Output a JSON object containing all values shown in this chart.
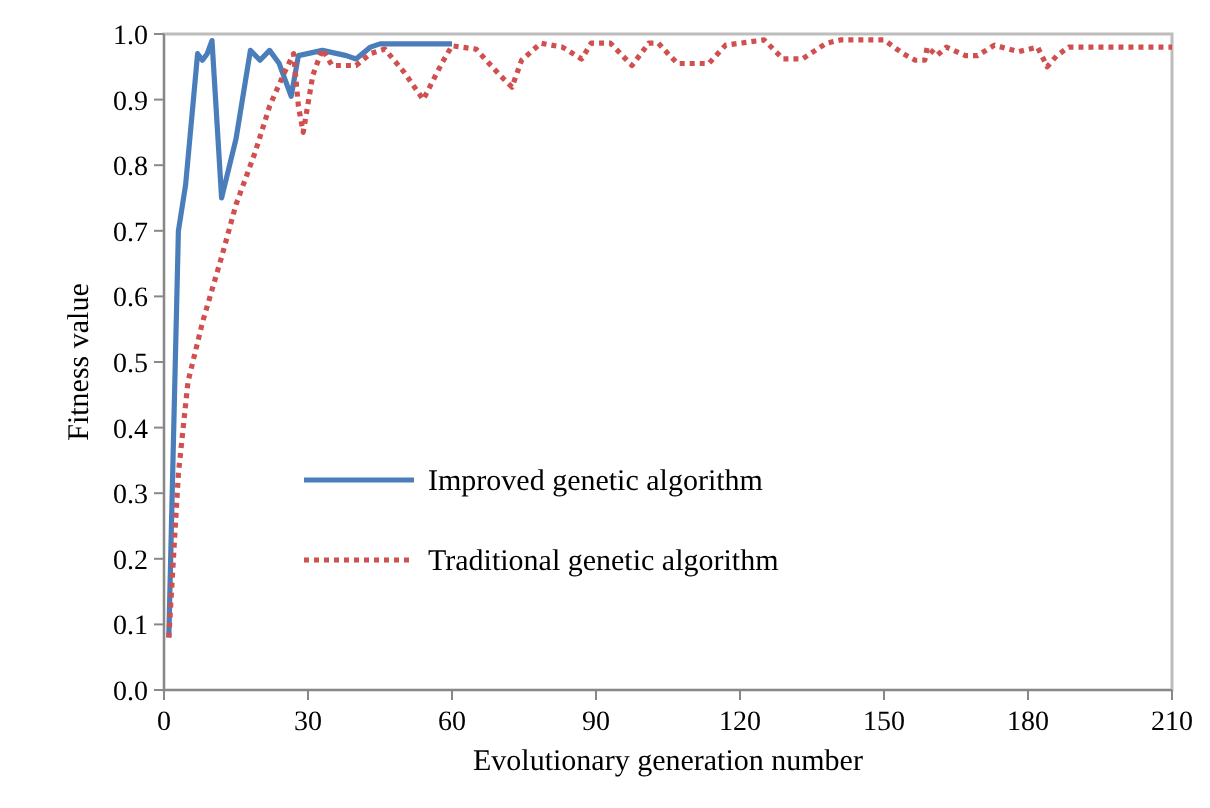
{
  "chart_data": {
    "type": "line",
    "xlabel": "Evolutionary generation number",
    "ylabel": "Fitness value",
    "xlim": [
      0,
      210
    ],
    "xticks": [
      0,
      30,
      60,
      90,
      120,
      150,
      180,
      210
    ],
    "ylim": [
      0,
      1
    ],
    "yticks": [
      {
        "value": 0,
        "label": "0.0"
      },
      {
        "value": 0.1,
        "label": "0.1"
      },
      {
        "value": 0.2,
        "label": "0.2"
      },
      {
        "value": 0.3,
        "label": "0.3"
      },
      {
        "value": 0.4,
        "label": "0.4"
      },
      {
        "value": 0.5,
        "label": "0.5"
      },
      {
        "value": 0.6,
        "label": "0.6"
      },
      {
        "value": 0.7,
        "label": "0.7"
      },
      {
        "value": 0.8,
        "label": "0.8"
      },
      {
        "value": 0.9,
        "label": "0.9"
      },
      {
        "value": 1,
        "label": "1.0"
      }
    ],
    "grid": false,
    "legend": "left",
    "marker": "none",
    "series": [
      {
        "name": "Improved genetic algorithm",
        "color": "#4a7ebb",
        "line_style": "solid",
        "x": [
          1,
          3,
          4.5,
          7,
          8,
          9,
          10,
          12,
          15,
          18,
          20,
          22,
          24,
          26.5,
          28,
          33,
          38,
          40,
          43,
          45,
          60
        ],
        "values": [
          0.08,
          0.7,
          0.77,
          0.97,
          0.96,
          0.97,
          0.99,
          0.75,
          0.84,
          0.975,
          0.96,
          0.975,
          0.955,
          0.905,
          0.967,
          0.975,
          0.967,
          0.962,
          0.98,
          0.985,
          0.985
        ]
      },
      {
        "name": "Traditional genetic algorithm",
        "color": "#d05050",
        "line_style": "dotted",
        "x": [
          1,
          3,
          5,
          8,
          10,
          12,
          15,
          19,
          22,
          25,
          27,
          28,
          29,
          31,
          33,
          35,
          40,
          43,
          46,
          50,
          54,
          58,
          60,
          65,
          70,
          72.5,
          74.5,
          78.5,
          83,
          87,
          89,
          93,
          97.5,
          101,
          103,
          105,
          107,
          113.5,
          117,
          125,
          129,
          133,
          138,
          141,
          150,
          154,
          156.5,
          158.5,
          159,
          161,
          163,
          167,
          169.5,
          173,
          178,
          182,
          184,
          186,
          188.5,
          210
        ],
        "values": [
          0.08,
          0.33,
          0.47,
          0.56,
          0.61,
          0.66,
          0.74,
          0.82,
          0.89,
          0.94,
          0.97,
          0.89,
          0.85,
          0.937,
          0.977,
          0.952,
          0.952,
          0.97,
          0.977,
          0.942,
          0.9,
          0.957,
          0.982,
          0.977,
          0.937,
          0.919,
          0.96,
          0.986,
          0.98,
          0.962,
          0.986,
          0.986,
          0.952,
          0.986,
          0.986,
          0.97,
          0.955,
          0.955,
          0.983,
          0.991,
          0.962,
          0.962,
          0.986,
          0.991,
          0.991,
          0.97,
          0.96,
          0.96,
          0.98,
          0.967,
          0.98,
          0.967,
          0.967,
          0.983,
          0.973,
          0.98,
          0.95,
          0.967,
          0.98,
          0.98
        ]
      }
    ]
  }
}
